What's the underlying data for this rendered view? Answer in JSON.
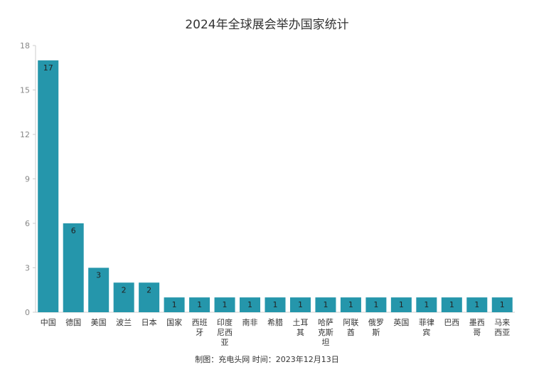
{
  "chart_data": {
    "type": "bar",
    "title": "2024年全球展会举办国家统计",
    "categories": [
      "中国",
      "德国",
      "美国",
      "波兰",
      "日本",
      "国家",
      "西班牙",
      "印度尼西亚",
      "南非",
      "希腊",
      "土耳其",
      "哈萨克斯坦",
      "阿联酋",
      "俄罗斯",
      "英国",
      "菲律宾",
      "巴西",
      "墨西哥",
      "马来西亚"
    ],
    "values": [
      17,
      6,
      3,
      2,
      2,
      1,
      1,
      1,
      1,
      1,
      1,
      1,
      1,
      1,
      1,
      1,
      1,
      1,
      1
    ],
    "ylim": [
      0,
      18
    ],
    "yticks": [
      0,
      3,
      6,
      9,
      12,
      15,
      18
    ],
    "grid": false,
    "bar_color": "#2596ab",
    "footer": "制图：充电头网  时间：2023年12月13日"
  }
}
